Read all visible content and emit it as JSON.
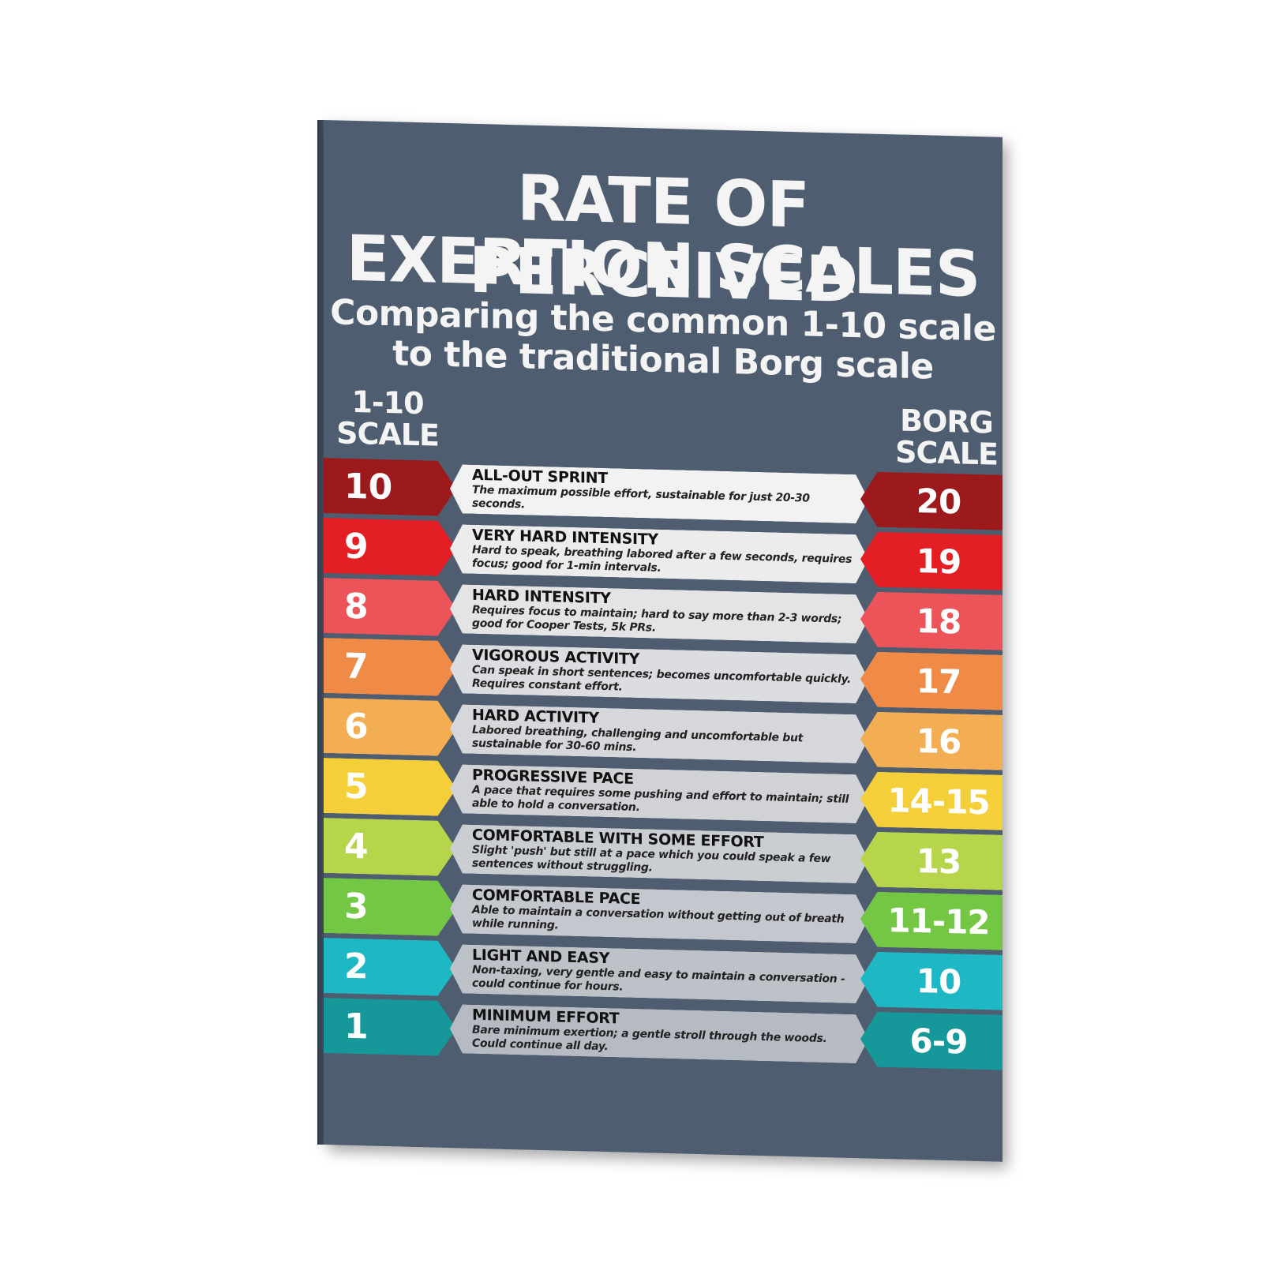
{
  "poster": {
    "title_line1": "RATE OF PERCEIVED",
    "title_line2": "EXERTION SCALES",
    "subtitle_line1": "Comparing the common 1-10 scale",
    "subtitle_line2": "to the traditional Borg scale",
    "left_header_line1": "1-10",
    "left_header_line2": "SCALE",
    "right_header_line1": "BORG",
    "right_header_line2": "SCALE",
    "background_color": "#4f5d70"
  },
  "rows": [
    {
      "scale": "10",
      "borg": "20",
      "title": "ALL-OUT SPRINT",
      "desc": "The maximum possible effort, sustainable for just 20-30 seconds.",
      "color": "#9c1a1c",
      "panel": "#f2f2f2"
    },
    {
      "scale": "9",
      "borg": "19",
      "title": "VERY HARD INTENSITY",
      "desc": "Hard to speak, breathing labored after a few seconds, requires focus; good for 1-min intervals.",
      "color": "#e31e24",
      "panel": "#ececec"
    },
    {
      "scale": "8",
      "borg": "18",
      "title": "HARD INTENSITY",
      "desc": "Requires focus to maintain; hard to say more than 2-3 words; good for Cooper Tests, 5k PRs.",
      "color": "#ec5459",
      "panel": "#e4e4e6"
    },
    {
      "scale": "7",
      "borg": "17",
      "title": "VIGOROUS ACTIVITY",
      "desc": "Can speak in short sentences; becomes uncomfortable quickly. Requires constant effort.",
      "color": "#ef8a47",
      "panel": "#dcdde0"
    },
    {
      "scale": "6",
      "borg": "16",
      "title": "HARD ACTIVITY",
      "desc": "Labored breathing, challenging and uncomfortable but sustainable for 30-60 mins.",
      "color": "#f3ad52",
      "panel": "#d6d7db"
    },
    {
      "scale": "5",
      "borg": "14-15",
      "title": "PROGRESSIVE PACE",
      "desc": "A pace that requires some pushing and effort to maintain; still able to hold a conversation.",
      "color": "#f4cf3a",
      "panel": "#d0d2d6"
    },
    {
      "scale": "4",
      "borg": "13",
      "title": "COMFORTABLE WITH SOME EFFORT",
      "desc": "Slight 'push' but still at a pace which you could speak a few sentences without struggling.",
      "color": "#b6d54b",
      "panel": "#cacdd2"
    },
    {
      "scale": "3",
      "borg": "11-12",
      "title": "COMFORTABLE PACE",
      "desc": "Able to maintain a conversation without getting out of breath while running.",
      "color": "#74c645",
      "panel": "#c4c7cd"
    },
    {
      "scale": "2",
      "borg": "10",
      "title": "LIGHT AND EASY",
      "desc": "Non-taxing, very gentle and easy to maintain a conversation - could continue for hours.",
      "color": "#1eb7c4",
      "panel": "#bdc1c8"
    },
    {
      "scale": "1",
      "borg": "6-9",
      "title": "MINIMUM EFFORT",
      "desc": "Bare minimum exertion; a gentle stroll through the woods. Could continue all day.",
      "color": "#16979a",
      "panel": "#b6bbc3"
    }
  ]
}
